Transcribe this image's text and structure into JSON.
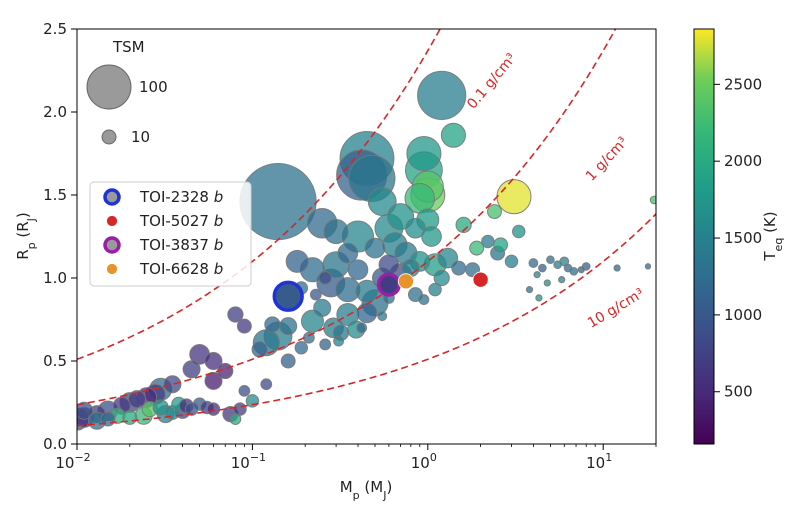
{
  "chart_data": {
    "type": "scatter",
    "x_label": "M_p (M_J)",
    "y_label": "R_p (R_J)",
    "x_scale": "log",
    "x_range": [
      0.01,
      20
    ],
    "y_range": [
      0.0,
      2.5
    ],
    "x_ticks": [
      0.01,
      0.1,
      1,
      10
    ],
    "x_tick_labels": [
      "10",
      "10",
      "10",
      "10"
    ],
    "x_tick_exponents": [
      "−2",
      "−1",
      "0",
      "1"
    ],
    "y_ticks": [
      0.0,
      0.5,
      1.0,
      1.5,
      2.0,
      2.5
    ],
    "y_tick_labels": [
      "0.0",
      "0.5",
      "1.0",
      "1.5",
      "2.0",
      "2.5"
    ],
    "colorbar": {
      "label": "T_eq (K)",
      "range": [
        160,
        2860
      ],
      "ticks": [
        500,
        1000,
        1500,
        2000,
        2500
      ],
      "tick_labels": [
        "500",
        "1000",
        "1500",
        "2000",
        "2500"
      ],
      "colormap": "viridis"
    },
    "size_legend": {
      "title": "TSM",
      "entries": [
        {
          "label": "100",
          "tsm": 100
        },
        {
          "label": "10",
          "tsm": 10
        }
      ]
    },
    "density_curves": [
      {
        "label": "0.1 g/cm³",
        "density": 0.1,
        "color": "#d62728"
      },
      {
        "label": "1 g/cm³",
        "density": 1,
        "color": "#d62728"
      },
      {
        "label": "10 g/cm³",
        "density": 10,
        "color": "#d62728"
      }
    ],
    "highlighted": [
      {
        "name": "TOI-2328",
        "suffix": "b",
        "x": 0.16,
        "y": 0.89,
        "tsm": 40,
        "teq": 1030,
        "edge": "#1f33d6"
      },
      {
        "name": "TOI-5027",
        "suffix": "b",
        "x": 2.0,
        "y": 0.99,
        "tsm": 12,
        "teq": 1400,
        "fill": "#d62728"
      },
      {
        "name": "TOI-3837",
        "suffix": "b",
        "x": 0.6,
        "y": 0.96,
        "tsm": 22,
        "teq": 700,
        "edge": "#9a1fa8"
      },
      {
        "name": "TOI-6628",
        "suffix": "b",
        "x": 0.75,
        "y": 0.98,
        "tsm": 12,
        "teq": 900,
        "fill": "#e8932a"
      }
    ],
    "points": [
      [
        0.14,
        1.46,
        300,
        1300
      ],
      [
        1.2,
        2.1,
        120,
        1450
      ],
      [
        0.45,
        1.72,
        150,
        1500
      ],
      [
        0.42,
        1.62,
        130,
        1100
      ],
      [
        0.48,
        1.6,
        110,
        1350
      ],
      [
        0.95,
        1.75,
        60,
        1750
      ],
      [
        0.95,
        1.65,
        70,
        1900
      ],
      [
        1.0,
        1.55,
        50,
        2400
      ],
      [
        1.0,
        1.5,
        60,
        2500
      ],
      [
        0.9,
        1.48,
        45,
        2200
      ],
      [
        1.4,
        1.86,
        30,
        1900
      ],
      [
        3.1,
        1.49,
        60,
        2800
      ],
      [
        0.55,
        1.46,
        40,
        1600
      ],
      [
        0.25,
        1.33,
        45,
        1200
      ],
      [
        0.3,
        1.28,
        30,
        1300
      ],
      [
        0.4,
        1.25,
        50,
        1550
      ],
      [
        0.6,
        1.3,
        40,
        1600
      ],
      [
        0.7,
        1.37,
        35,
        1700
      ],
      [
        0.85,
        1.3,
        20,
        1650
      ],
      [
        1.0,
        1.35,
        25,
        1800
      ],
      [
        1.05,
        1.25,
        20,
        1750
      ],
      [
        0.65,
        1.2,
        30,
        1500
      ],
      [
        0.75,
        1.15,
        25,
        1400
      ],
      [
        0.5,
        1.18,
        20,
        1300
      ],
      [
        0.35,
        1.15,
        20,
        1200
      ],
      [
        0.18,
        1.1,
        25,
        1100
      ],
      [
        0.22,
        1.05,
        30,
        1250
      ],
      [
        0.3,
        1.08,
        35,
        1350
      ],
      [
        0.4,
        1.05,
        20,
        1150
      ],
      [
        0.28,
        0.97,
        40,
        1050
      ],
      [
        0.35,
        0.93,
        30,
        1250
      ],
      [
        0.45,
        0.92,
        25,
        1400
      ],
      [
        0.55,
        1.0,
        20,
        1050
      ],
      [
        0.7,
        1.02,
        25,
        900
      ],
      [
        0.6,
        1.08,
        20,
        850
      ],
      [
        0.8,
        1.06,
        15,
        1500
      ],
      [
        0.9,
        1.1,
        20,
        1700
      ],
      [
        1.1,
        1.08,
        25,
        1850
      ],
      [
        1.3,
        1.12,
        20,
        1550
      ],
      [
        1.5,
        1.06,
        10,
        1200
      ],
      [
        1.8,
        1.05,
        10,
        1250
      ],
      [
        2.2,
        1.22,
        8,
        1400
      ],
      [
        2.5,
        1.15,
        10,
        1350
      ],
      [
        3.0,
        1.1,
        8,
        1450
      ],
      [
        2.6,
        1.2,
        10,
        1900
      ],
      [
        3.3,
        1.28,
        8,
        1700
      ],
      [
        1.9,
        1.18,
        10,
        2200
      ],
      [
        1.6,
        1.32,
        12,
        2000
      ],
      [
        2.4,
        1.4,
        10,
        2300
      ],
      [
        1.2,
        1.0,
        12,
        1600
      ],
      [
        1.1,
        0.93,
        8,
        1500
      ],
      [
        0.85,
        0.9,
        10,
        1300
      ],
      [
        0.5,
        0.85,
        35,
        1300
      ],
      [
        0.45,
        0.79,
        20,
        1150
      ],
      [
        0.35,
        0.78,
        25,
        1450
      ],
      [
        0.25,
        0.82,
        15,
        1400
      ],
      [
        0.22,
        0.74,
        25,
        1550
      ],
      [
        0.29,
        0.7,
        20,
        1450
      ],
      [
        0.32,
        0.67,
        12,
        1350
      ],
      [
        0.39,
        0.69,
        15,
        1650
      ],
      [
        0.14,
        0.65,
        40,
        1450
      ],
      [
        0.12,
        0.61,
        35,
        1350
      ],
      [
        0.16,
        0.71,
        15,
        1300
      ],
      [
        0.13,
        0.72,
        12,
        1200
      ],
      [
        0.11,
        0.57,
        12,
        1150
      ],
      [
        0.08,
        0.78,
        12,
        700
      ],
      [
        0.09,
        0.71,
        10,
        650
      ],
      [
        0.05,
        0.54,
        20,
        600
      ],
      [
        0.045,
        0.45,
        15,
        700
      ],
      [
        0.06,
        0.5,
        15,
        550
      ],
      [
        0.06,
        0.38,
        15,
        400
      ],
      [
        0.07,
        0.44,
        12,
        450
      ],
      [
        0.035,
        0.36,
        15,
        800
      ],
      [
        0.03,
        0.33,
        25,
        1200
      ],
      [
        0.028,
        0.3,
        20,
        700
      ],
      [
        0.025,
        0.28,
        20,
        500
      ],
      [
        0.022,
        0.27,
        15,
        700
      ],
      [
        0.02,
        0.25,
        20,
        800
      ],
      [
        0.018,
        0.23,
        15,
        650
      ],
      [
        0.015,
        0.2,
        20,
        900
      ],
      [
        0.013,
        0.18,
        15,
        700
      ],
      [
        0.011,
        0.16,
        20,
        500
      ],
      [
        0.01,
        0.15,
        25,
        1000
      ],
      [
        0.011,
        0.2,
        15,
        900
      ],
      [
        0.013,
        0.14,
        15,
        1300
      ],
      [
        0.015,
        0.15,
        10,
        1200
      ],
      [
        0.017,
        0.17,
        12,
        2100
      ],
      [
        0.02,
        0.16,
        10,
        2000
      ],
      [
        0.024,
        0.17,
        15,
        2200
      ],
      [
        0.026,
        0.21,
        12,
        2400
      ],
      [
        0.03,
        0.22,
        12,
        1700
      ],
      [
        0.032,
        0.18,
        15,
        1500
      ],
      [
        0.035,
        0.19,
        10,
        1600
      ],
      [
        0.038,
        0.24,
        10,
        1800
      ],
      [
        0.04,
        0.2,
        12,
        700
      ],
      [
        0.042,
        0.23,
        10,
        600
      ],
      [
        0.045,
        0.21,
        8,
        900
      ],
      [
        0.05,
        0.24,
        8,
        1000
      ],
      [
        0.055,
        0.22,
        8,
        700
      ],
      [
        0.06,
        0.21,
        8,
        550
      ],
      [
        0.075,
        0.18,
        12,
        650
      ],
      [
        0.085,
        0.21,
        8,
        700
      ],
      [
        0.1,
        0.26,
        8,
        1600
      ],
      [
        0.08,
        0.15,
        6,
        2000
      ],
      [
        0.16,
        0.5,
        10,
        1100
      ],
      [
        0.09,
        0.32,
        6,
        900
      ],
      [
        0.12,
        0.36,
        6,
        800
      ],
      [
        0.19,
        0.58,
        8,
        1200
      ],
      [
        0.21,
        0.64,
        6,
        1300
      ],
      [
        0.26,
        0.6,
        6,
        1100
      ],
      [
        0.19,
        0.94,
        8,
        1300
      ],
      [
        0.23,
        0.9,
        6,
        1000
      ],
      [
        0.26,
        1.0,
        8,
        900
      ],
      [
        0.31,
        0.62,
        5,
        1500
      ],
      [
        0.42,
        0.7,
        5,
        1200
      ],
      [
        0.55,
        0.77,
        4,
        1400
      ],
      [
        0.6,
        0.88,
        6,
        1300
      ],
      [
        0.95,
        0.87,
        5,
        1300
      ],
      [
        4.0,
        1.09,
        4,
        1200
      ],
      [
        4.5,
        1.06,
        3,
        1100
      ],
      [
        5.0,
        1.11,
        3,
        1300
      ],
      [
        5.5,
        1.08,
        3,
        1400
      ],
      [
        6.0,
        1.1,
        4,
        1500
      ],
      [
        6.3,
        1.06,
        3,
        1200
      ],
      [
        6.8,
        1.04,
        3,
        1300
      ],
      [
        7.5,
        1.05,
        2,
        1100
      ],
      [
        8.0,
        1.07,
        3,
        1100
      ],
      [
        4.2,
        1.02,
        2,
        1500
      ],
      [
        4.8,
        0.97,
        2,
        1600
      ],
      [
        5.8,
        0.99,
        2,
        1500
      ],
      [
        3.8,
        0.93,
        2,
        1300
      ],
      [
        4.3,
        0.88,
        2,
        1700
      ],
      [
        12.0,
        1.06,
        2,
        1150
      ],
      [
        18.0,
        1.07,
        1.5,
        1200
      ],
      [
        19.5,
        1.47,
        3,
        2300
      ]
    ]
  }
}
